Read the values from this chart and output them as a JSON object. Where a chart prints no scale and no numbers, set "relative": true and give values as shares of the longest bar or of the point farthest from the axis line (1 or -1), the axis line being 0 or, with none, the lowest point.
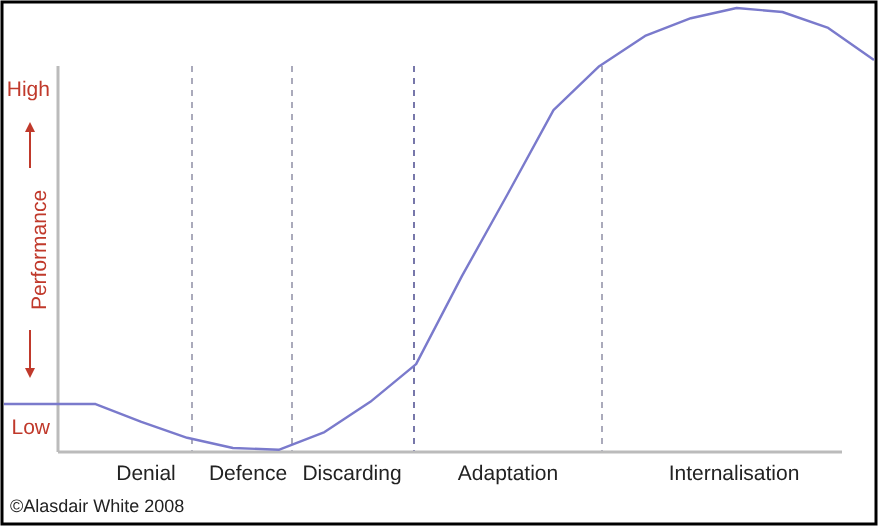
{
  "chart_data": {
    "type": "line",
    "ylabel": "Performance",
    "relative": true,
    "annotations": [
      "High",
      "Low",
      "Denial",
      "Defence",
      "Discarding",
      "Adaptation",
      "Internalisation",
      "©Alasdair White 2008"
    ],
    "categories": [
      null,
      null,
      null,
      null,
      null,
      null,
      null,
      null,
      null,
      null,
      null,
      null,
      null,
      null,
      null,
      null,
      null,
      null,
      null,
      null
    ],
    "series": [
      {
        "color": "#7a7acc",
        "values": [
          0.108,
          0.108,
          0.108,
          0.068,
          0.032,
          0.009,
          0.005,
          0.045,
          0.113,
          0.198,
          0.396,
          0.581,
          0.77,
          0.869,
          0.937,
          0.977,
          1,
          0.991,
          0.955,
          0.883
        ]
      }
    ]
  }
}
